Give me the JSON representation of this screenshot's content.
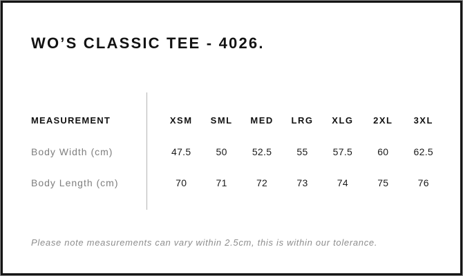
{
  "title": "WO’S CLASSIC TEE - 4026.",
  "table": {
    "label_header": "MEASUREMENT",
    "size_headers": [
      "XSM",
      "SML",
      "MED",
      "LRG",
      "XLG",
      "2XL",
      "3XL"
    ],
    "rows": [
      {
        "label": "Body Width (cm)",
        "values": [
          "47.5",
          "50",
          "52.5",
          "55",
          "57.5",
          "60",
          "62.5"
        ]
      },
      {
        "label": "Body Length (cm)",
        "values": [
          "70",
          "71",
          "72",
          "73",
          "74",
          "75",
          "76"
        ]
      }
    ]
  },
  "note": "Please note measurements can vary within 2.5cm, this is within our tolerance.",
  "colors": {
    "text": "#111111",
    "muted_label": "#7e7e7e",
    "note_text": "#8d8d8d",
    "divider": "#b4b4b4",
    "frame": "#141414"
  },
  "chart_data": {
    "type": "table",
    "title": "WO’S CLASSIC TEE - 4026.",
    "columns": [
      "MEASUREMENT",
      "XSM",
      "SML",
      "MED",
      "LRG",
      "XLG",
      "2XL",
      "3XL"
    ],
    "rows": [
      [
        "Body Width (cm)",
        47.5,
        50,
        52.5,
        55,
        57.5,
        60,
        62.5
      ],
      [
        "Body Length (cm)",
        70,
        71,
        72,
        73,
        74,
        75,
        76
      ]
    ],
    "footnote": "Please note measurements can vary within 2.5cm, this is within our tolerance.",
    "layout": {
      "grid": false,
      "divider": "vertical line between label column and size columns"
    }
  }
}
